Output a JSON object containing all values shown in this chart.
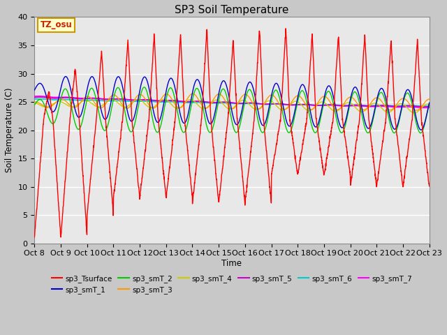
{
  "title": "SP3 Soil Temperature",
  "xlabel": "Time",
  "ylabel": "Soil Temperature (C)",
  "ylim": [
    0,
    40
  ],
  "xlim": [
    0,
    15
  ],
  "xtick_labels": [
    "Oct 8",
    "Oct 9",
    "Oct 10",
    "Oct 11",
    "Oct 12",
    "Oct 13",
    "Oct 14",
    "Oct 15",
    "Oct 16",
    "Oct 17",
    "Oct 18",
    "Oct 19",
    "Oct 20",
    "Oct 21",
    "Oct 22",
    "Oct 23"
  ],
  "annotation": "TZ_osu",
  "background_color": "#e8e8e8",
  "fig_background": "#d0d0d0",
  "series_colors": {
    "sp3_Tsurface": "#ff0000",
    "sp3_smT_1": "#0000cc",
    "sp3_smT_2": "#00cc00",
    "sp3_smT_3": "#ff9900",
    "sp3_smT_4": "#cccc00",
    "sp3_smT_5": "#cc00cc",
    "sp3_smT_6": "#00cccc",
    "sp3_smT_7": "#ff00ff"
  },
  "legend_colors": [
    "#ff0000",
    "#0000cc",
    "#00cc00",
    "#ff9900",
    "#cccc00",
    "#cc00cc",
    "#00cccc",
    "#ff00ff"
  ],
  "legend_labels": [
    "sp3_Tsurface",
    "sp3_smT_1",
    "sp3_smT_2",
    "sp3_smT_3",
    "sp3_smT_4",
    "sp3_smT_5",
    "sp3_smT_6",
    "sp3_smT_7"
  ]
}
